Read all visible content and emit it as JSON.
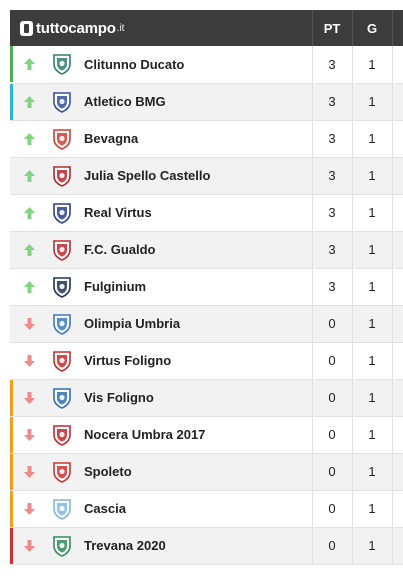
{
  "header": {
    "brand": "tuttocampo",
    "brand_tld": ".it",
    "col_pt": "PT",
    "col_g": "G"
  },
  "colors": {
    "header_bg": "#3c3c3c",
    "up_arrow": "#7fd67f",
    "down_arrow": "#f08a8a",
    "zone_green": "#4caf50",
    "zone_cyan": "#29b6d8",
    "zone_orange": "#f59e1b",
    "zone_red": "#d32f2f"
  },
  "rows": [
    {
      "team": "Clitunno Ducato",
      "pt": "3",
      "g": "1",
      "trend": "up",
      "zone": "green",
      "crest_color": "#2f7d6b"
    },
    {
      "team": "Atletico BMG",
      "pt": "3",
      "g": "1",
      "trend": "up",
      "zone": "cyan",
      "crest_color": "#2f4fa3"
    },
    {
      "team": "Bevagna",
      "pt": "3",
      "g": "1",
      "trend": "up",
      "zone": "",
      "crest_color": "#d63b2f"
    },
    {
      "team": "Julia Spello Castello",
      "pt": "3",
      "g": "1",
      "trend": "up",
      "zone": "",
      "crest_color": "#b8262e"
    },
    {
      "team": "Real Virtus",
      "pt": "3",
      "g": "1",
      "trend": "up",
      "zone": "",
      "crest_color": "#2a3f8f"
    },
    {
      "team": "F.C. Gualdo",
      "pt": "3",
      "g": "1",
      "trend": "up",
      "zone": "",
      "crest_color": "#c4262e"
    },
    {
      "team": "Fulginium",
      "pt": "3",
      "g": "1",
      "trend": "up",
      "zone": "",
      "crest_color": "#1d3557"
    },
    {
      "team": "Olimpia Umbria",
      "pt": "0",
      "g": "1",
      "trend": "down",
      "zone": "",
      "crest_color": "#3a78c4"
    },
    {
      "team": "Virtus Foligno",
      "pt": "0",
      "g": "1",
      "trend": "down",
      "zone": "",
      "crest_color": "#c92a2a"
    },
    {
      "team": "Vis Foligno",
      "pt": "0",
      "g": "1",
      "trend": "down",
      "zone": "orange",
      "crest_color": "#2d6fb3"
    },
    {
      "team": "Nocera Umbra 2017",
      "pt": "0",
      "g": "1",
      "trend": "down",
      "zone": "orange",
      "crest_color": "#c7252e"
    },
    {
      "team": "Spoleto",
      "pt": "0",
      "g": "1",
      "trend": "down",
      "zone": "orange",
      "crest_color": "#d32f2f"
    },
    {
      "team": "Cascia",
      "pt": "0",
      "g": "1",
      "trend": "down",
      "zone": "orange",
      "crest_color": "#7ab8e0"
    },
    {
      "team": "Trevana 2020",
      "pt": "0",
      "g": "1",
      "trend": "down",
      "zone": "red",
      "crest_color": "#2e8b57"
    }
  ]
}
